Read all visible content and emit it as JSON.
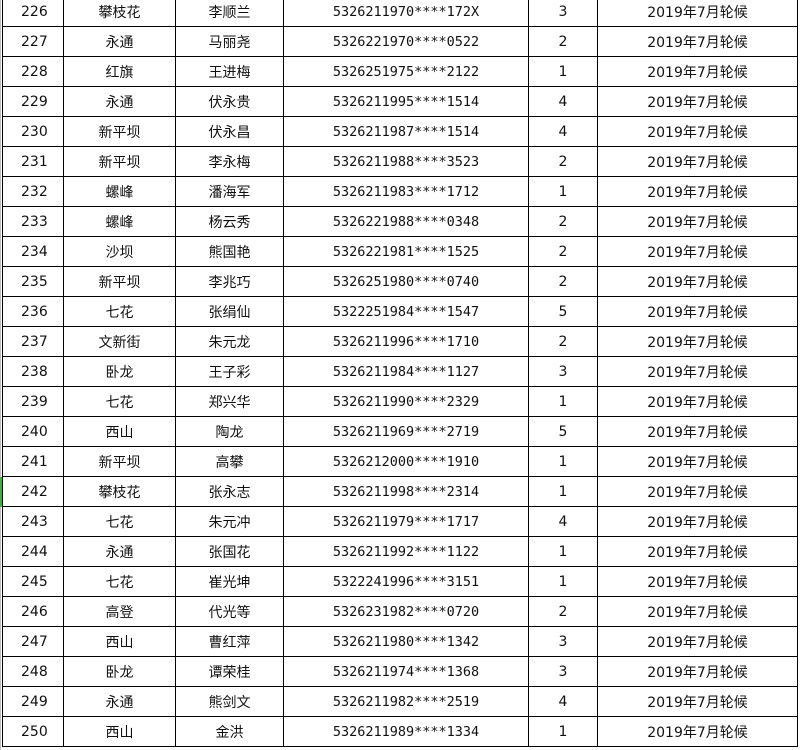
{
  "rows": [
    {
      "no": "226",
      "town": "攀枝花",
      "name": "李顺兰",
      "id": "5326211970****172X",
      "count": "3",
      "batch": "2019年7月轮候"
    },
    {
      "no": "227",
      "town": "永通",
      "name": "马丽尧",
      "id": "5326221970****0522",
      "count": "2",
      "batch": "2019年7月轮候"
    },
    {
      "no": "228",
      "town": "红旗",
      "name": "王进梅",
      "id": "5326251975****2122",
      "count": "1",
      "batch": "2019年7月轮候"
    },
    {
      "no": "229",
      "town": "永通",
      "name": "伏永贵",
      "id": "5326211995****1514",
      "count": "4",
      "batch": "2019年7月轮候"
    },
    {
      "no": "230",
      "town": "新平坝",
      "name": "伏永昌",
      "id": "5326211987****1514",
      "count": "4",
      "batch": "2019年7月轮候"
    },
    {
      "no": "231",
      "town": "新平坝",
      "name": "李永梅",
      "id": "5326211988****3523",
      "count": "2",
      "batch": "2019年7月轮候"
    },
    {
      "no": "232",
      "town": "螺峰",
      "name": "潘海军",
      "id": "5326211983****1712",
      "count": "1",
      "batch": "2019年7月轮候"
    },
    {
      "no": "233",
      "town": "螺峰",
      "name": "杨云秀",
      "id": "5326221988****0348",
      "count": "2",
      "batch": "2019年7月轮候"
    },
    {
      "no": "234",
      "town": "沙坝",
      "name": "熊国艳",
      "id": "5326221981****1525",
      "count": "2",
      "batch": "2019年7月轮候"
    },
    {
      "no": "235",
      "town": "新平坝",
      "name": "李兆巧",
      "id": "5326251980****0740",
      "count": "2",
      "batch": "2019年7月轮候"
    },
    {
      "no": "236",
      "town": "七花",
      "name": "张绢仙",
      "id": "5322251984****1547",
      "count": "5",
      "batch": "2019年7月轮候"
    },
    {
      "no": "237",
      "town": "文新街",
      "name": "朱元龙",
      "id": "5326211996****1710",
      "count": "2",
      "batch": "2019年7月轮候"
    },
    {
      "no": "238",
      "town": "卧龙",
      "name": "王子彩",
      "id": "5326211984****1127",
      "count": "3",
      "batch": "2019年7月轮候"
    },
    {
      "no": "239",
      "town": "七花",
      "name": "郑兴华",
      "id": "5326211990****2329",
      "count": "1",
      "batch": "2019年7月轮候"
    },
    {
      "no": "240",
      "town": "西山",
      "name": "陶龙",
      "id": "5326211969****2719",
      "count": "5",
      "batch": "2019年7月轮候"
    },
    {
      "no": "241",
      "town": "新平坝",
      "name": "高攀",
      "id": "5326212000****1910",
      "count": "1",
      "batch": "2019年7月轮候"
    },
    {
      "no": "242",
      "town": "攀枝花",
      "name": "张永志",
      "id": "5326211998****2314",
      "count": "1",
      "batch": "2019年7月轮候"
    },
    {
      "no": "243",
      "town": "七花",
      "name": "朱元冲",
      "id": "5326211979****1717",
      "count": "4",
      "batch": "2019年7月轮候"
    },
    {
      "no": "244",
      "town": "永通",
      "name": "张国花",
      "id": "5326211992****1122",
      "count": "1",
      "batch": "2019年7月轮候"
    },
    {
      "no": "245",
      "town": "七花",
      "name": "崔光坤",
      "id": "5322241996****3151",
      "count": "1",
      "batch": "2019年7月轮候"
    },
    {
      "no": "246",
      "town": "高登",
      "name": "代光等",
      "id": "5326231982****0720",
      "count": "2",
      "batch": "2019年7月轮候"
    },
    {
      "no": "247",
      "town": "西山",
      "name": "曹红萍",
      "id": "5326211980****1342",
      "count": "3",
      "batch": "2019年7月轮候"
    },
    {
      "no": "248",
      "town": "卧龙",
      "name": "谭荣桂",
      "id": "5326211974****1368",
      "count": "3",
      "batch": "2019年7月轮候"
    },
    {
      "no": "249",
      "town": "永通",
      "name": "熊剑文",
      "id": "5326211982****2519",
      "count": "4",
      "batch": "2019年7月轮候"
    },
    {
      "no": "250",
      "town": "西山",
      "name": "金洪",
      "id": "5326211989****1334",
      "count": "1",
      "batch": "2019年7月轮候"
    }
  ]
}
